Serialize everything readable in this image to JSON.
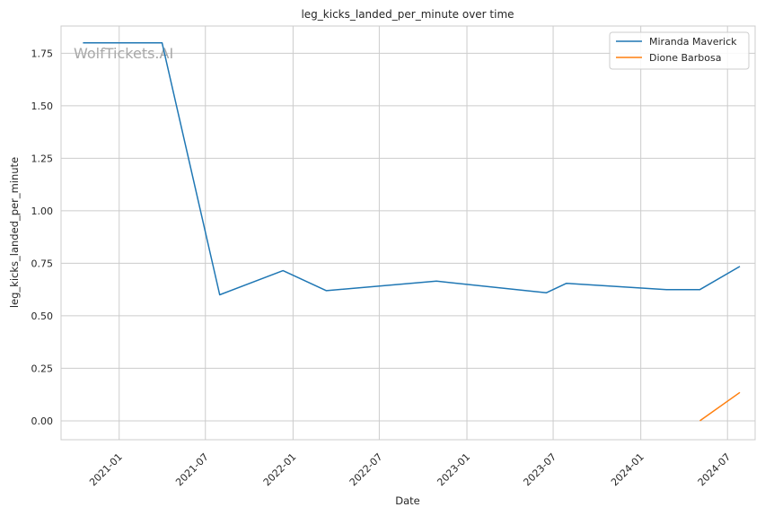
{
  "chart_data": {
    "type": "line",
    "title": "leg_kicks_landed_per_minute over time",
    "xlabel": "Date",
    "ylabel": "leg_kicks_landed_per_minute",
    "watermark": "WolfTickets.AI",
    "xlim": [
      "2020-09-01",
      "2024-08-28"
    ],
    "ylim": [
      -0.09,
      1.88
    ],
    "x_ticks": [
      "2021-01",
      "2021-07",
      "2022-01",
      "2022-07",
      "2023-01",
      "2023-07",
      "2024-01",
      "2024-07"
    ],
    "y_ticks": [
      "0.00",
      "0.25",
      "0.50",
      "0.75",
      "1.00",
      "1.25",
      "1.50",
      "1.75"
    ],
    "grid": true,
    "legend_position": "top-right",
    "series": [
      {
        "name": "Miranda Maverick",
        "color": "#1f77b4",
        "points": [
          {
            "x": "2020-10-17",
            "y": 1.8
          },
          {
            "x": "2021-04-01",
            "y": 1.8
          },
          {
            "x": "2021-07-31",
            "y": 0.6
          },
          {
            "x": "2021-12-11",
            "y": 0.715
          },
          {
            "x": "2022-03-12",
            "y": 0.62
          },
          {
            "x": "2022-10-29",
            "y": 0.665
          },
          {
            "x": "2023-06-17",
            "y": 0.61
          },
          {
            "x": "2023-07-29",
            "y": 0.655
          },
          {
            "x": "2024-02-24",
            "y": 0.625
          },
          {
            "x": "2024-05-04",
            "y": 0.625
          },
          {
            "x": "2024-07-27",
            "y": 0.735
          }
        ]
      },
      {
        "name": "Dione Barbosa",
        "color": "#ff7f0e",
        "points": [
          {
            "x": "2024-05-04",
            "y": 0.0
          },
          {
            "x": "2024-07-27",
            "y": 0.135
          }
        ]
      }
    ]
  }
}
